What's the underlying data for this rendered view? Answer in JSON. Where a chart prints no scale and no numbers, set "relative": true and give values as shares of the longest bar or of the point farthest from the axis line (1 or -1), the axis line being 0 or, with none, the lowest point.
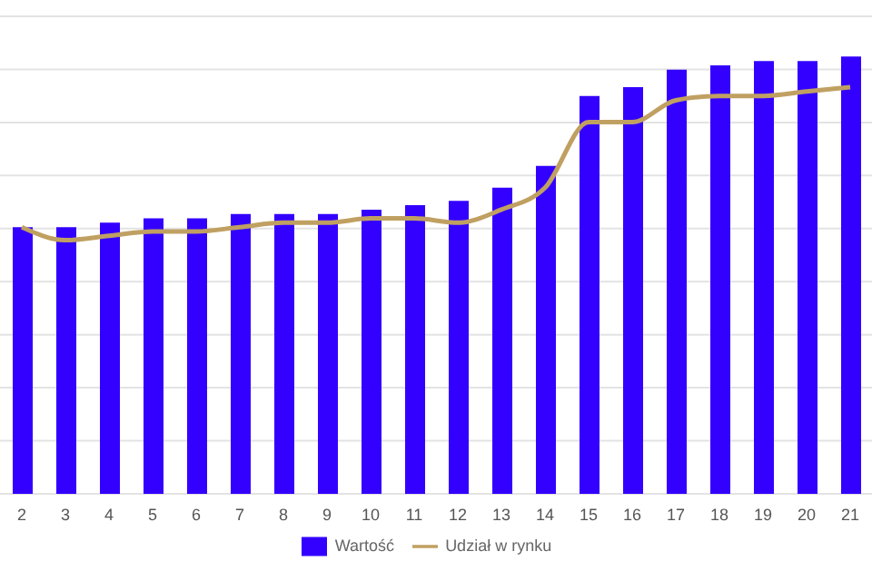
{
  "chart_data": {
    "type": "bar",
    "relative": true,
    "grid": "y",
    "legend": "bottom",
    "categories": [
      "2",
      "3",
      "4",
      "5",
      "6",
      "7",
      "8",
      "9",
      "10",
      "11",
      "12",
      "13",
      "14",
      "15",
      "16",
      "17",
      "18",
      "19",
      "20",
      "21"
    ],
    "series": [
      {
        "name": "Wartość",
        "color": "#3300ff",
        "values": [
          0.61,
          0.61,
          0.62,
          0.63,
          0.63,
          0.64,
          0.64,
          0.64,
          0.65,
          0.66,
          0.67,
          0.7,
          0.75,
          0.91,
          0.93,
          0.97,
          0.98,
          0.99,
          0.99,
          1
        ]
      },
      {
        "name": "Udział w rynku",
        "type": "line",
        "color": "#c0a062",
        "marker": "none",
        "values": [
          0.61,
          0.58,
          0.59,
          0.6,
          0.6,
          0.61,
          0.62,
          0.62,
          0.63,
          0.63,
          0.62,
          0.65,
          0.7,
          0.85,
          0.85,
          0.9,
          0.91,
          0.91,
          0.92,
          0.93
        ]
      }
    ]
  }
}
